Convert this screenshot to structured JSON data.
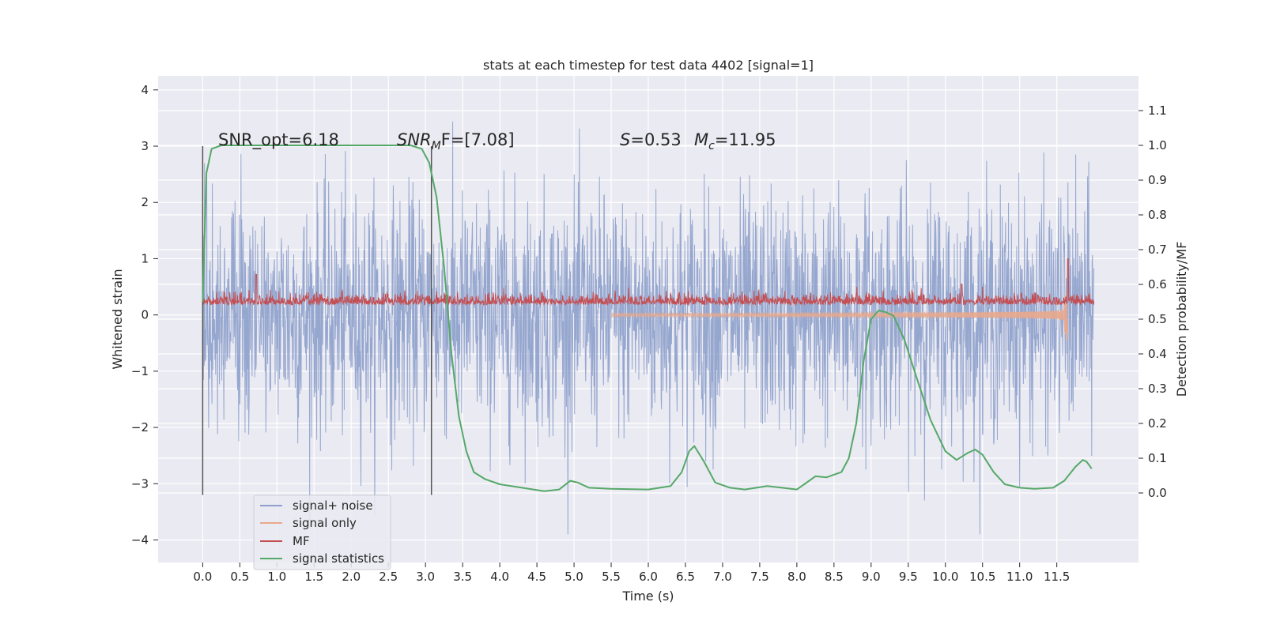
{
  "chart_data": {
    "type": "line",
    "title": "stats at each timestep for test data 4402 [signal=1]",
    "xlabel": "Time (s)",
    "ylabel": "Whitened strain",
    "ylabel_right": "Detection probability/MF",
    "xlim": [
      -0.6,
      12.6
    ],
    "ylim": [
      -4.4,
      4.25
    ],
    "ylim_right": [
      -0.2,
      1.2
    ],
    "x_ticks": [
      "0.0",
      "0.5",
      "1.0",
      "1.5",
      "2.0",
      "2.5",
      "3.0",
      "3.5",
      "4.0",
      "4.5",
      "5.0",
      "5.5",
      "6.0",
      "6.5",
      "7.0",
      "7.5",
      "8.0",
      "8.5",
      "9.0",
      "9.5",
      "10.0",
      "10.5",
      "11.0",
      "11.5"
    ],
    "y_ticks": [
      "4",
      "3",
      "2",
      "1",
      "0",
      "−1",
      "−2",
      "−3",
      "−4"
    ],
    "y_ticks_right": [
      "1.1",
      "1.0",
      "0.9",
      "0.8",
      "0.7",
      "0.6",
      "0.5",
      "0.4",
      "0.3",
      "0.2",
      "0.1",
      "0.0"
    ],
    "grid": true,
    "legend_position": "lower-left",
    "annotations": {
      "snr_opt": "SNR_opt=6.18",
      "snr_mf_sym": "SNR",
      "snr_mf_sub": "M",
      "snr_mf_rest": "F=[7.08]",
      "s_sym": "S",
      "s_rest": "=0.53",
      "mc_sym": "M",
      "mc_sub": "c",
      "mc_rest": "=11.95"
    },
    "vertical_lines_x": [
      0.0,
      3.08
    ],
    "series": [
      {
        "name": "signal+ noise",
        "color": "#8da0cb",
        "axis": "left",
        "kind": "noise",
        "x_range": [
          0.0,
          12.0
        ],
        "y_range": [
          -3.9,
          3.9
        ]
      },
      {
        "name": "signal only",
        "color": "#e9a98c",
        "axis": "left",
        "kind": "chirp",
        "x_range": [
          0.0,
          11.65
        ],
        "y_range": [
          -0.9,
          1.0
        ]
      },
      {
        "name": "MF",
        "color": "#c44e52",
        "axis": "left",
        "kind": "mf",
        "x_range": [
          0.0,
          12.0
        ],
        "y_range": [
          0.0,
          1.0
        ]
      },
      {
        "name": "signal statistics",
        "color": "#55a868",
        "axis": "right",
        "x": [
          0.0,
          0.05,
          0.12,
          0.25,
          0.5,
          1.0,
          2.0,
          2.5,
          2.8,
          2.95,
          3.05,
          3.15,
          3.25,
          3.35,
          3.45,
          3.55,
          3.65,
          3.8,
          4.0,
          4.3,
          4.6,
          4.8,
          4.95,
          5.05,
          5.2,
          5.5,
          6.0,
          6.3,
          6.45,
          6.55,
          6.62,
          6.75,
          6.9,
          7.1,
          7.3,
          7.6,
          7.8,
          8.0,
          8.1,
          8.25,
          8.4,
          8.6,
          8.7,
          8.8,
          8.9,
          9.0,
          9.1,
          9.2,
          9.3,
          9.45,
          9.6,
          9.8,
          10.0,
          10.15,
          10.3,
          10.4,
          10.5,
          10.65,
          10.8,
          11.0,
          11.2,
          11.45,
          11.6,
          11.75,
          11.85,
          11.9,
          11.97
        ],
        "y": [
          0.55,
          0.92,
          0.99,
          1.0,
          1.0,
          1.0,
          1.0,
          1.0,
          1.0,
          0.99,
          0.95,
          0.85,
          0.65,
          0.4,
          0.22,
          0.12,
          0.06,
          0.04,
          0.025,
          0.015,
          0.005,
          0.01,
          0.035,
          0.03,
          0.015,
          0.012,
          0.01,
          0.02,
          0.06,
          0.12,
          0.135,
          0.09,
          0.03,
          0.015,
          0.01,
          0.02,
          0.015,
          0.01,
          0.025,
          0.048,
          0.045,
          0.06,
          0.1,
          0.2,
          0.38,
          0.5,
          0.525,
          0.52,
          0.51,
          0.44,
          0.34,
          0.21,
          0.12,
          0.095,
          0.115,
          0.125,
          0.11,
          0.06,
          0.025,
          0.015,
          0.012,
          0.015,
          0.035,
          0.075,
          0.095,
          0.09,
          0.07
        ]
      }
    ]
  }
}
